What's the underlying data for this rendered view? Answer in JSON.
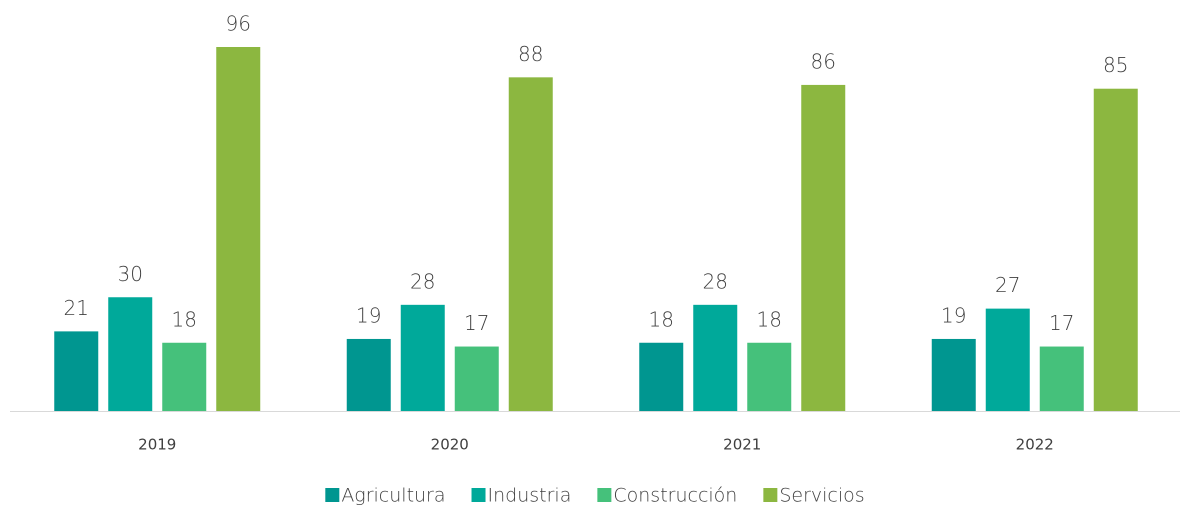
{
  "chart_data": {
    "type": "bar",
    "categories": [
      "2019",
      "2020",
      "2021",
      "2022"
    ],
    "series": [
      {
        "name": "Agricultura",
        "color": "#009690",
        "values": [
          21,
          19,
          18,
          19
        ]
      },
      {
        "name": "Industria",
        "color": "#00a99a",
        "values": [
          30,
          28,
          28,
          27
        ]
      },
      {
        "name": "Construcción",
        "color": "#45c17b",
        "values": [
          18,
          17,
          18,
          17
        ]
      },
      {
        "name": "Servicios",
        "color": "#8cb740",
        "values": [
          96,
          88,
          86,
          85
        ]
      }
    ],
    "legend": "bottom"
  }
}
